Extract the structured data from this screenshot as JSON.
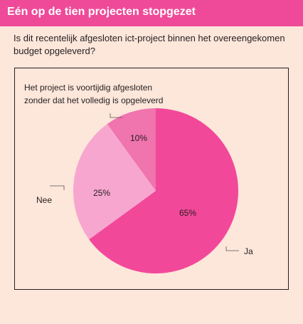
{
  "header": {
    "title": "Eén op de tien projecten stopgezet"
  },
  "question": "Is dit recentelijk afgesloten ict-project binnen het overeengekomen budget opgeleverd?",
  "colors": {
    "header_bg": "#ef4a99",
    "background": "#fde6da",
    "ja": "#f2489a",
    "nee": "#f7a6cf",
    "stopped": "#f074ae"
  },
  "chart_data": {
    "type": "pie",
    "slices": [
      {
        "label": "Ja",
        "value": 65,
        "value_label": "65%"
      },
      {
        "label": "Nee",
        "value": 25,
        "value_label": "25%"
      },
      {
        "label": "Het project is voortijdig afgesloten zonder dat het volledig is opgeleverd",
        "value": 10,
        "value_label": "10%"
      }
    ],
    "label_lines": {
      "stopped": [
        "Het project is voortijdig afgesloten",
        "zonder dat het volledig is opgeleverd"
      ]
    }
  }
}
